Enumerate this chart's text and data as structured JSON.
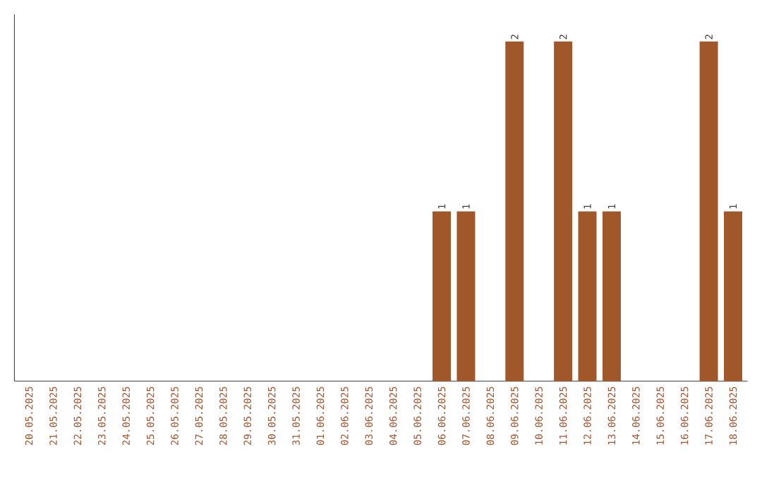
{
  "chart_data": {
    "type": "bar",
    "categories": [
      "20.05.2025",
      "21.05.2025",
      "22.05.2025",
      "23.05.2025",
      "24.05.2025",
      "25.05.2025",
      "26.05.2025",
      "27.05.2025",
      "28.05.2025",
      "29.05.2025",
      "30.05.2025",
      "31.05.2025",
      "01.06.2025",
      "02.06.2025",
      "03.06.2025",
      "04.06.2025",
      "05.06.2025",
      "06.06.2025",
      "07.06.2025",
      "08.06.2025",
      "09.06.2025",
      "10.06.2025",
      "11.06.2025",
      "12.06.2025",
      "13.06.2025",
      "14.06.2025",
      "15.06.2025",
      "16.06.2025",
      "17.06.2025",
      "18.06.2025"
    ],
    "values": [
      null,
      null,
      null,
      null,
      null,
      null,
      null,
      null,
      null,
      null,
      null,
      null,
      null,
      null,
      null,
      null,
      null,
      1,
      1,
      null,
      2,
      null,
      2,
      1,
      1,
      null,
      null,
      null,
      2,
      1
    ],
    "value_labels": [
      null,
      null,
      null,
      null,
      null,
      null,
      null,
      null,
      null,
      null,
      null,
      null,
      null,
      null,
      null,
      null,
      null,
      "1",
      "1",
      null,
      "2",
      null,
      "2",
      "1",
      "1",
      null,
      null,
      null,
      "2",
      "1"
    ],
    "color": "#a0582a",
    "tick_labels": "x"
  }
}
